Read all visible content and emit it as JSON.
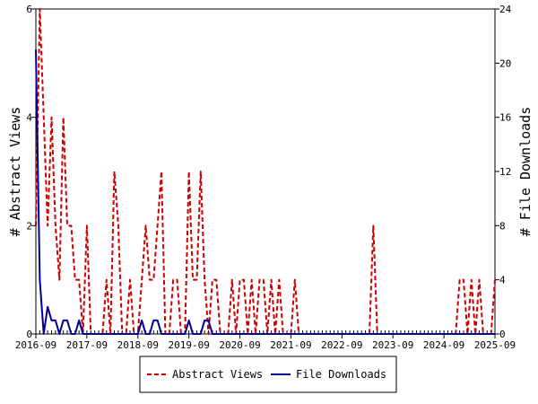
{
  "chart_data": {
    "type": "line",
    "title": "",
    "xlabel": "",
    "ylabel_left": "# Abstract Views",
    "ylabel_right": "# File Downloads",
    "x_start": "2016-09",
    "x_end": "2025-09",
    "x_ticks": [
      "2016-09",
      "2017-09",
      "2018-09",
      "2019-09",
      "2020-09",
      "2021-09",
      "2022-09",
      "2023-09",
      "2024-09",
      "2025-09"
    ],
    "y_left_lim": [
      0,
      6
    ],
    "y_left_ticks": [
      "0",
      "2",
      "4",
      "6"
    ],
    "y_right_lim": [
      0,
      24
    ],
    "y_right_ticks": [
      "0",
      "4",
      "8",
      "12",
      "16",
      "20",
      "24"
    ],
    "legend_position": "bottom-center",
    "series": [
      {
        "name": "Abstract Views",
        "axis": "left",
        "color": "#cc0000",
        "style": "dashed",
        "values": [
          2,
          6,
          4,
          2,
          4,
          2,
          1,
          4,
          2,
          2,
          1,
          1,
          0,
          2,
          0,
          0,
          0,
          0,
          1,
          0,
          3,
          2,
          0,
          0,
          1,
          0,
          0,
          1,
          2,
          1,
          1,
          2,
          3,
          0,
          0,
          1,
          1,
          0,
          0,
          3,
          1,
          1,
          3,
          1,
          0,
          1,
          1,
          0,
          0,
          0,
          1,
          0,
          1,
          1,
          0,
          1,
          0,
          1,
          1,
          0,
          1,
          0,
          1,
          0,
          0,
          0,
          1,
          0,
          0,
          0,
          0,
          0,
          0,
          0,
          0,
          0,
          0,
          0,
          0,
          0,
          0,
          0,
          0,
          0,
          0,
          0,
          2,
          0,
          0,
          0,
          0,
          0,
          0,
          0,
          0,
          0,
          0,
          0,
          0,
          0,
          0,
          0,
          0,
          0,
          0,
          0,
          0,
          0,
          1,
          1,
          0,
          1,
          0,
          1,
          0,
          0,
          0,
          1
        ]
      },
      {
        "name": "File Downloads",
        "axis": "right",
        "color": "#000099",
        "style": "solid",
        "values": [
          21,
          4,
          0,
          2,
          1,
          1,
          0,
          1,
          1,
          0,
          0,
          1,
          0,
          0,
          0,
          0,
          0,
          0,
          0,
          0,
          0,
          0,
          0,
          0,
          0,
          0,
          0,
          1,
          0,
          0,
          1,
          1,
          0,
          0,
          0,
          0,
          0,
          0,
          0,
          1,
          0,
          0,
          0,
          1,
          1,
          0,
          0,
          0,
          0,
          0,
          0,
          0,
          0,
          0,
          0,
          0,
          0,
          0,
          0,
          0,
          0,
          0,
          0,
          0,
          0,
          0,
          0,
          0,
          0,
          0,
          0,
          0,
          0,
          0,
          0,
          0,
          0,
          0,
          0,
          0,
          0,
          0,
          0,
          0,
          0,
          0,
          0,
          0,
          0,
          0,
          0,
          0,
          0,
          0,
          0,
          0,
          0,
          0,
          0,
          0,
          0,
          0,
          0,
          0,
          0,
          0,
          0,
          0,
          0,
          0,
          0,
          0,
          0,
          0,
          0,
          0,
          0,
          0
        ]
      }
    ]
  }
}
